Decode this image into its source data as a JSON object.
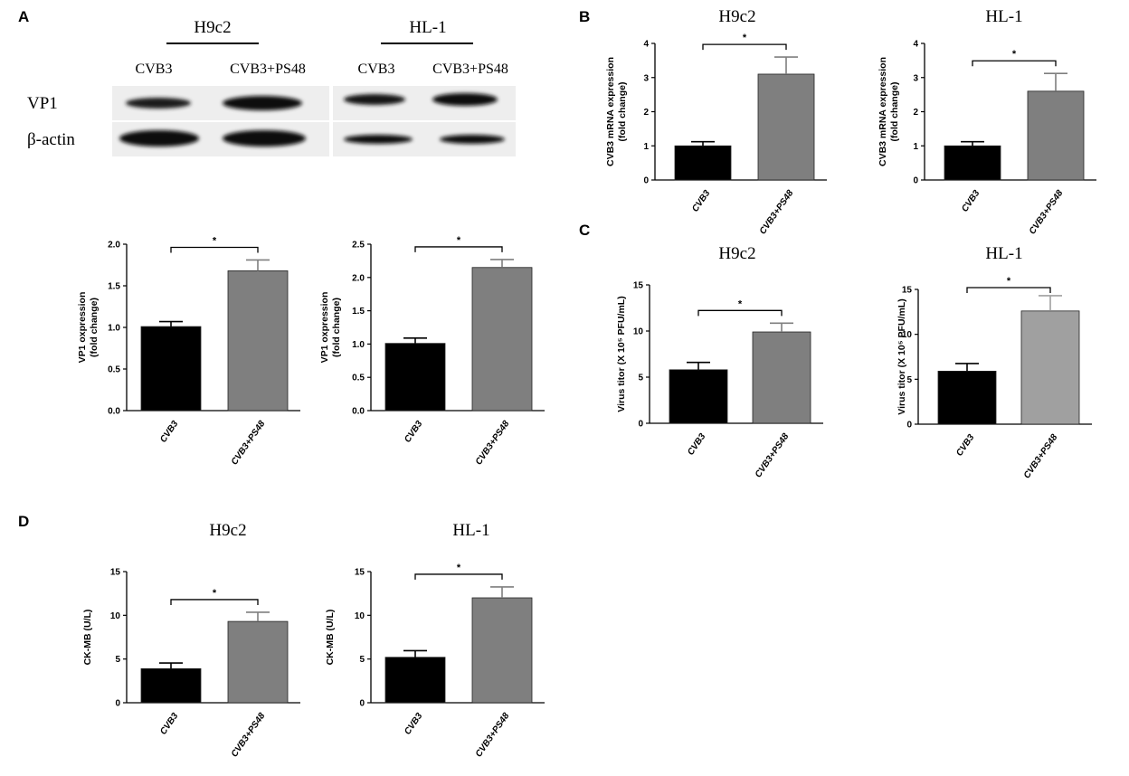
{
  "panel_letters": [
    "A",
    "B",
    "C",
    "D"
  ],
  "colors": {
    "cvb3_bar": "#000000",
    "ps48_bar": "#7f7f7f",
    "ps48_bar_light": "#a0a0a0"
  },
  "blot": {
    "groups": [
      {
        "title": "H9c2",
        "lanes": [
          "CVB3",
          "CVB3+PS48"
        ]
      },
      {
        "title": "HL-1",
        "lanes": [
          "CVB3",
          "CVB3+PS48"
        ]
      }
    ],
    "rows": [
      "VP1",
      "β-actin"
    ]
  },
  "chart_data": [
    {
      "id": "A1",
      "type": "bar",
      "title": "",
      "categories": [
        "CVB3",
        "CVB3+PS48"
      ],
      "values": [
        1.01,
        1.68
      ],
      "errors": [
        0.06,
        0.13
      ],
      "ylabel_lines": [
        "VP1 oxpression",
        "(fold change)"
      ],
      "ylim": [
        0,
        2.0
      ],
      "yticks": [
        "0.0",
        "0.5",
        "1.0",
        "1.5",
        "2.0"
      ],
      "significance": "*"
    },
    {
      "id": "A2",
      "type": "bar",
      "title": "",
      "categories": [
        "CVB3",
        "CVB3+PS48"
      ],
      "values": [
        1.01,
        2.15
      ],
      "errors": [
        0.08,
        0.12
      ],
      "ylabel_lines": [
        "VP1 oxpression",
        "(fold change)"
      ],
      "ylim": [
        0,
        2.5
      ],
      "yticks": [
        "0.0",
        "0.5",
        "1.0",
        "1.5",
        "2.0",
        "2.5"
      ],
      "significance": "*"
    },
    {
      "id": "B1",
      "type": "bar",
      "title": "H9c2",
      "categories": [
        "CVB3",
        "CVB3+PS48"
      ],
      "values": [
        1.0,
        3.1
      ],
      "errors": [
        0.12,
        0.5
      ],
      "ylabel_lines": [
        "CVB3 mRNA expression",
        "(fold change)"
      ],
      "ylim": [
        0,
        4
      ],
      "yticks": [
        "0",
        "1",
        "2",
        "3",
        "4"
      ],
      "significance": "*"
    },
    {
      "id": "B2",
      "type": "bar",
      "title": "HL-1",
      "categories": [
        "CVB3",
        "CVB3+PS48"
      ],
      "values": [
        1.0,
        2.6
      ],
      "errors": [
        0.12,
        0.52
      ],
      "ylabel_lines": [
        "CVB3 mRNA expression",
        "(fold change)"
      ],
      "ylim": [
        0,
        4
      ],
      "yticks": [
        "0",
        "1",
        "2",
        "3",
        "4"
      ],
      "significance": "*"
    },
    {
      "id": "C1",
      "type": "bar",
      "title": "H9c2",
      "categories": [
        "CVB3",
        "CVB3+PS48"
      ],
      "values": [
        5.8,
        9.9
      ],
      "errors": [
        0.8,
        0.95
      ],
      "ylabel_lines": [
        "Virus titor (X 10⁵ PFU/mL)"
      ],
      "ylim": [
        0,
        15
      ],
      "yticks": [
        "0",
        "5",
        "10",
        "15"
      ],
      "significance": "*"
    },
    {
      "id": "C2",
      "type": "bar",
      "title": "HL-1",
      "categories": [
        "CVB3",
        "CVB3+PS48"
      ],
      "values": [
        5.9,
        12.6
      ],
      "errors": [
        0.85,
        1.7
      ],
      "ylabel_lines": [
        "Virus titor (X 10⁵ PFU/mL)"
      ],
      "ylim": [
        0,
        15
      ],
      "yticks": [
        "0",
        "5",
        "10",
        "15"
      ],
      "significance": "*"
    },
    {
      "id": "D1",
      "type": "bar",
      "title": "H9c2",
      "categories": [
        "CVB3",
        "CVB3+PS48"
      ],
      "values": [
        3.9,
        9.3
      ],
      "errors": [
        0.65,
        1.05
      ],
      "ylabel_lines": [
        "CK-MB (U/L)"
      ],
      "ylim": [
        0,
        15
      ],
      "yticks": [
        "0",
        "5",
        "10",
        "15"
      ],
      "significance": "*"
    },
    {
      "id": "D2",
      "type": "bar",
      "title": "HL-1",
      "categories": [
        "CVB3",
        "CVB3+PS48"
      ],
      "values": [
        5.2,
        12.0
      ],
      "errors": [
        0.75,
        1.25
      ],
      "ylabel_lines": [
        "CK-MB (U/L)"
      ],
      "ylim": [
        0,
        15
      ],
      "yticks": [
        "0",
        "5",
        "10",
        "15"
      ],
      "significance": "*"
    }
  ]
}
